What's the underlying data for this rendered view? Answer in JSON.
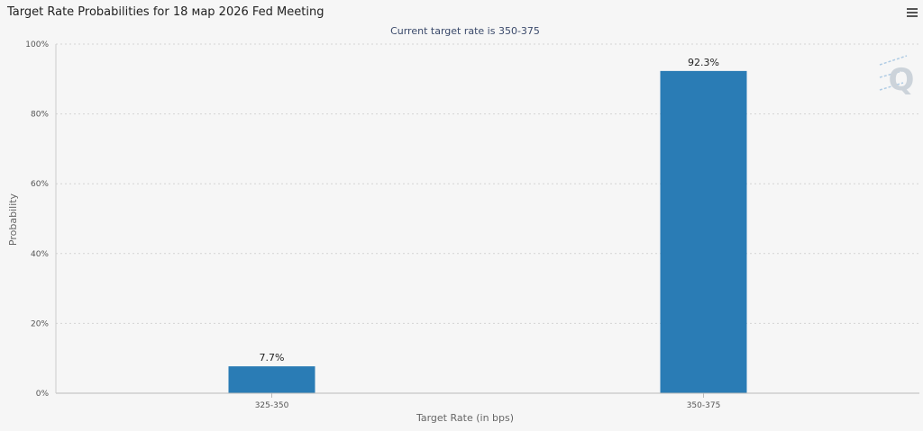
{
  "header": {
    "title": "Target Rate Probabilities for 18 мар 2026 Fed Meeting",
    "menu_icon": "hamburger-menu-icon"
  },
  "chart_data": {
    "type": "bar",
    "title": "Target Rate Probabilities for 18 мар 2026 Fed Meeting",
    "subtitle": "Current target rate is 350-375",
    "categories": [
      "325-350",
      "350-375"
    ],
    "values": [
      7.7,
      92.3
    ],
    "data_labels": [
      "7.7%",
      "92.3%"
    ],
    "xlabel": "Target Rate (in bps)",
    "ylabel": "Probability",
    "ylim": [
      0,
      100
    ],
    "yticks": [
      0,
      20,
      40,
      60,
      80,
      100
    ],
    "ytick_labels": [
      "0%",
      "20%",
      "40%",
      "60%",
      "80%",
      "100%"
    ],
    "grid": true,
    "legend": "none",
    "bar_color": "#2a7cb5",
    "watermark": "Q"
  }
}
